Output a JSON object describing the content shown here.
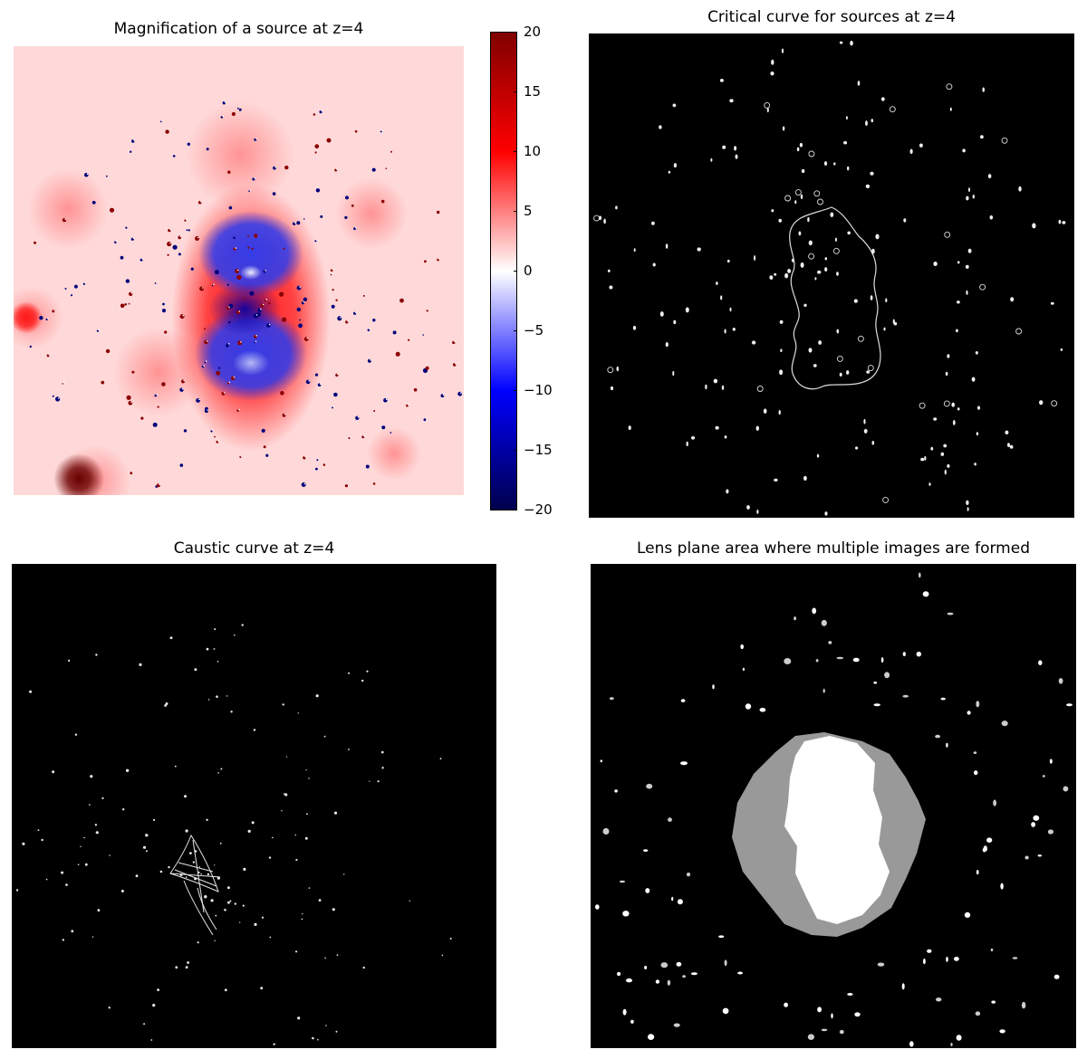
{
  "chart_data": [
    {
      "type": "heatmap",
      "title": "Magnification of a source at z=4",
      "colormap": "seismic",
      "colorbar": {
        "range": [
          -20,
          20
        ],
        "ticks": [
          {
            "value": 20,
            "label": "20"
          },
          {
            "value": 15,
            "label": "15"
          },
          {
            "value": 10,
            "label": "10"
          },
          {
            "value": 5,
            "label": "5"
          },
          {
            "value": 0,
            "label": "0"
          },
          {
            "value": -5,
            "label": "−5"
          },
          {
            "value": -10,
            "label": "−10"
          },
          {
            "value": -15,
            "label": "−15"
          },
          {
            "value": -20,
            "label": "−20"
          }
        ]
      },
      "axes_visible": false
    },
    {
      "type": "heatmap",
      "title": "Critical curve for sources at z=4",
      "background": "#000000",
      "curve_color": "#ffffff",
      "axes_visible": false
    },
    {
      "type": "heatmap",
      "title": "Caustic curve at z=4",
      "background": "#000000",
      "curve_color": "#ffffff",
      "axes_visible": false
    },
    {
      "type": "heatmap",
      "title": "Lens plane area where multiple images are formed",
      "background": "#000000",
      "levels_colors": [
        "#000000",
        "#999999",
        "#ffffff"
      ],
      "axes_visible": false
    }
  ]
}
